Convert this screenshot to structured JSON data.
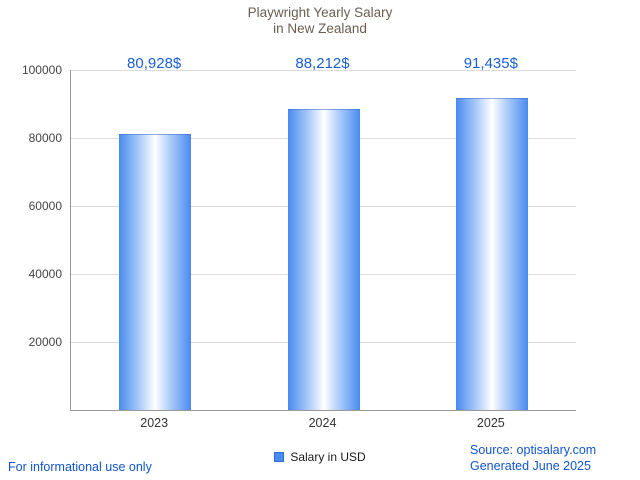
{
  "title": {
    "line1": "Playwright Yearly Salary",
    "line2": "in New Zealand"
  },
  "chart_data": {
    "type": "bar",
    "title": "Playwright Yearly Salary in New Zealand",
    "categories": [
      "2023",
      "2024",
      "2025"
    ],
    "values": [
      80928,
      88212,
      91435
    ],
    "value_labels": [
      "80,928$",
      "88,212$",
      "91,435$"
    ],
    "series_name": "Salary in USD",
    "xlabel": "",
    "ylabel": "",
    "ylim": [
      0,
      100000
    ],
    "yticks": [
      20000,
      40000,
      60000,
      80000,
      100000
    ],
    "grid": true,
    "legend_position": "bottom"
  },
  "legend": {
    "label": "Salary in USD"
  },
  "footer": {
    "disclaimer": "For informational use only",
    "source": "Source: optisalary.com",
    "generated": "Generated June 2025"
  },
  "colors": {
    "bar-blue": "#4a8bf0",
    "bar-blue-light": "#a9caf9",
    "value-label-blue": "#1a5fd4",
    "footer-blue": "#1155cc",
    "title-color": "#6b5e51",
    "axis-color": "#999999",
    "grid-color": "#dddddd",
    "tick-label-color": "#444444"
  }
}
